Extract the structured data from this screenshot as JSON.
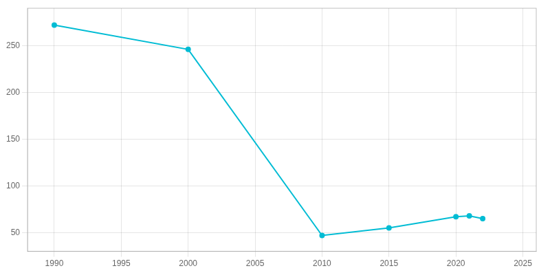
{
  "chart_data": {
    "type": "line",
    "x": [
      1990,
      2000,
      2010,
      2015,
      2020,
      2021,
      2022
    ],
    "values": [
      272,
      246,
      47,
      55,
      67,
      68,
      65
    ],
    "color": "#00BCD4",
    "marker": "circle",
    "xlim": [
      1988,
      2026
    ],
    "ylim": [
      30,
      290
    ],
    "xticks": [
      1990,
      1995,
      2000,
      2005,
      2010,
      2015,
      2020,
      2025
    ],
    "yticks": [
      50,
      100,
      150,
      200,
      250
    ],
    "grid": true
  }
}
